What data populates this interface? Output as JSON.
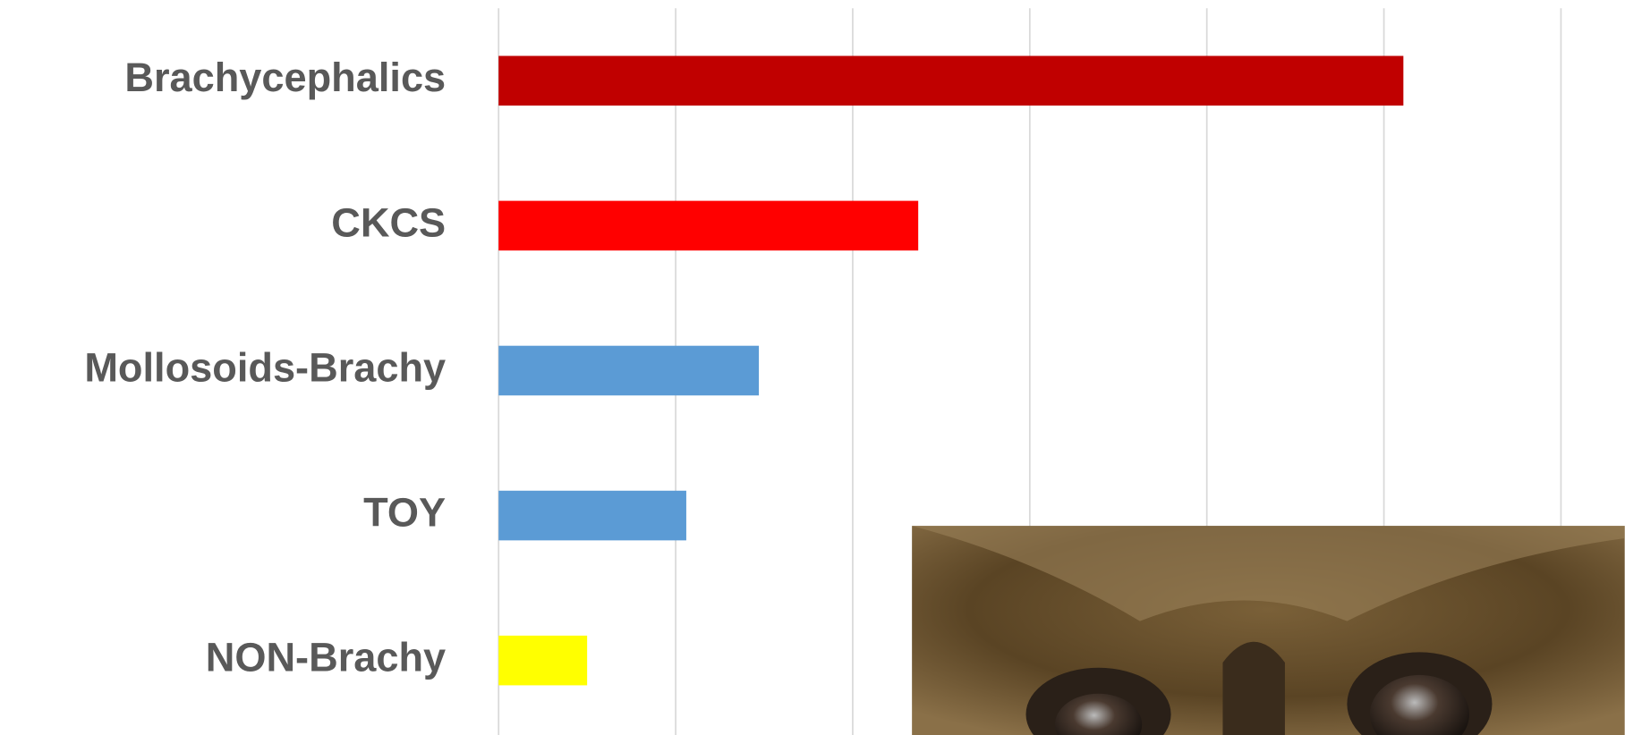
{
  "chart_data": {
    "type": "barh",
    "categories": [
      "Brachycephalics",
      "CKCS",
      "Mollosoids-Brachy",
      "TOY",
      "NON-Brachy"
    ],
    "values": [
      5.11,
      2.37,
      1.47,
      1.06,
      0.5
    ],
    "colors": [
      "#c00000",
      "#ff0000",
      "#5b9bd5",
      "#5b9bd5",
      "#ffff00"
    ],
    "xlim": [
      0,
      6.36
    ],
    "xticks": [
      0,
      1,
      2,
      3,
      4,
      5,
      6
    ],
    "grid": true
  }
}
